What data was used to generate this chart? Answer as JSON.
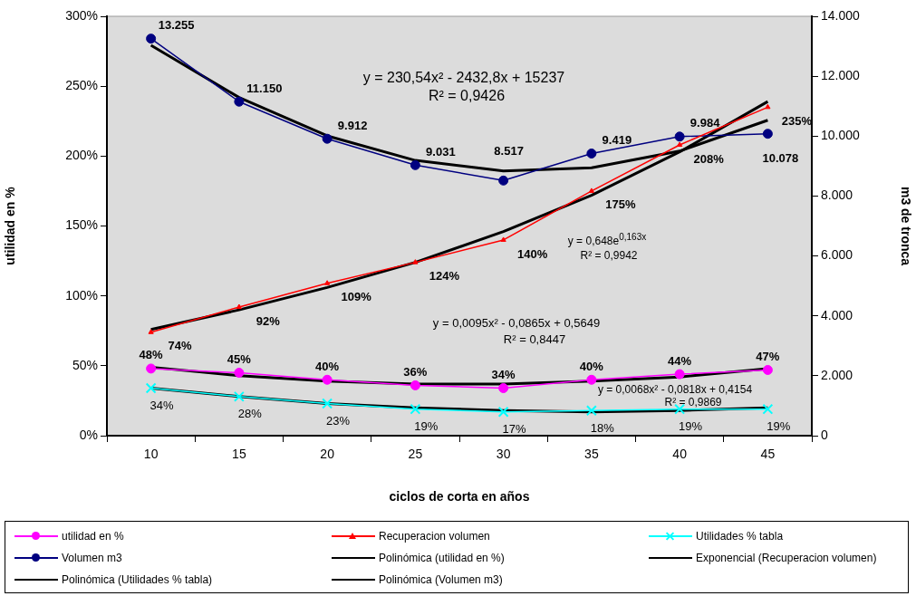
{
  "chart_data": {
    "type": "line",
    "categories": [
      "10",
      "15",
      "20",
      "25",
      "30",
      "35",
      "40",
      "45"
    ],
    "xlabel": "ciclos de corta en años",
    "ylabel": "utilidad en %",
    "y2label": "m3 de tronca",
    "ylim": [
      0,
      300
    ],
    "yticks": [
      {
        "value": 0,
        "label": "0%"
      },
      {
        "value": 50,
        "label": "50%"
      },
      {
        "value": 100,
        "label": "100%"
      },
      {
        "value": 150,
        "label": "150%"
      },
      {
        "value": 200,
        "label": "200%"
      },
      {
        "value": 250,
        "label": "250%"
      },
      {
        "value": 300,
        "label": "300%"
      }
    ],
    "y2lim": [
      0,
      14000
    ],
    "y2ticks": [
      0,
      {
        "value": 2000,
        "label": "2.000"
      },
      {
        "value": 4000,
        "label": "4.000"
      },
      {
        "value": 6000,
        "label": "6.000"
      },
      {
        "value": 8000,
        "label": "8.000"
      },
      {
        "value": 10000,
        "label": "10.000"
      },
      {
        "value": 12000,
        "label": "12.000"
      },
      {
        "value": 14000,
        "label": "14.000"
      }
    ],
    "grid": false,
    "legend": "bottom",
    "series": [
      {
        "name": "utilidad en %",
        "color": "#ff00ff",
        "marker": "circle",
        "values": [
          48,
          45,
          40,
          36,
          34,
          40,
          44,
          47
        ],
        "value_labels": [
          "48%",
          "45%",
          "40%",
          "36%",
          "34%",
          "40%",
          "44%",
          "47%"
        ]
      },
      {
        "name": "Recuperacion volumen",
        "color": "#ff0000",
        "marker": "triangle",
        "values": [
          74,
          92,
          109,
          124,
          140,
          175,
          208,
          235
        ],
        "value_labels": [
          "74%",
          "92%",
          "109%",
          "124%",
          "140%",
          "175%",
          "208%",
          "235%"
        ]
      },
      {
        "name": "Utilidades % tabla",
        "color": "#00ffff",
        "marker": "cross",
        "values": [
          34,
          28,
          23,
          19,
          17,
          18,
          19,
          19
        ],
        "value_labels": [
          "34%",
          "28%",
          "23%",
          "19%",
          "17%",
          "18%",
          "19%",
          "19%"
        ]
      },
      {
        "name": "Volumen m3",
        "color": "#000080",
        "marker": "circle",
        "axis": "y2",
        "values": [
          13255,
          11150,
          9912,
          9031,
          8517,
          9419,
          9984,
          10078
        ],
        "value_labels": [
          "13.255",
          "11.150",
          "9.912",
          "9.031",
          "8.517",
          "9.419",
          "9.984",
          "10.078"
        ]
      },
      {
        "name": "Polinómica (utilidad en %)",
        "color": "#000000",
        "marker": "none",
        "values": [
          49,
          43,
          39,
          37,
          37,
          39,
          42,
          48
        ]
      },
      {
        "name": "Exponencial (Recuperacion volumen)",
        "color": "#000000",
        "marker": "none",
        "values": [
          76,
          90,
          106,
          124,
          146,
          172,
          203,
          239
        ]
      },
      {
        "name": "Polinómica (Utilidades % tabla)",
        "color": "#000000",
        "marker": "none",
        "values": [
          34,
          28,
          23,
          20,
          18,
          17,
          18,
          20
        ]
      },
      {
        "name": "Polinómica (Volumen m3)",
        "color": "#000000",
        "marker": "none",
        "axis": "y2",
        "values": [
          13030,
          11290,
          10010,
          9190,
          8840,
          8940,
          9500,
          10530
        ]
      }
    ],
    "annotations": [
      "y = 230,54x² - 2432,8x + 15237",
      "R² = 0,9426",
      "y = 0,648e$^{0,163x}$",
      "R² = 0,9942",
      "y = 0,0095x² - 0,0865x + 0,5649",
      "R² = 0,8447",
      "y = 0,0068x² - 0,0818x + 0,4154",
      "R² = 0,9869"
    ]
  }
}
